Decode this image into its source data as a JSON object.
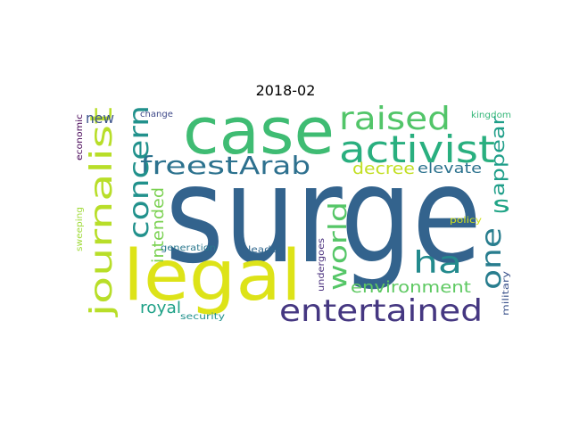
{
  "title": "2018-02",
  "words": [
    {
      "text": "surge",
      "color": "#33638d"
    },
    {
      "text": "case",
      "color": "#3fbc73"
    },
    {
      "text": "legal",
      "color": "#dde318"
    },
    {
      "text": "activist",
      "color": "#29af7f"
    },
    {
      "text": "raised",
      "color": "#52c569"
    },
    {
      "text": "Arab",
      "color": "#2d708e"
    },
    {
      "text": "freest",
      "color": "#2c728e"
    },
    {
      "text": "entertained",
      "color": "#453781"
    },
    {
      "text": "journalist",
      "color": "#b8de29"
    },
    {
      "text": "concern",
      "color": "#21918c"
    },
    {
      "text": "world",
      "color": "#55c667"
    },
    {
      "text": "one",
      "color": "#287d8e"
    },
    {
      "text": "ha",
      "color": "#238a8d"
    },
    {
      "text": "s",
      "color": "#20a486"
    },
    {
      "text": "appear",
      "color": "#1f9e89"
    },
    {
      "text": "decree",
      "color": "#c2df23"
    },
    {
      "text": "elevate",
      "color": "#2c728e"
    },
    {
      "text": "environment",
      "color": "#5ec962"
    },
    {
      "text": "intended",
      "color": "#7ad151"
    },
    {
      "text": "royal",
      "color": "#1fa187"
    },
    {
      "text": "new",
      "color": "#3b528b"
    },
    {
      "text": "change",
      "color": "#3e4989"
    },
    {
      "text": "kingdom",
      "color": "#35b779"
    },
    {
      "text": "economic",
      "color": "#440154"
    },
    {
      "text": "sweeping",
      "color": "#a0da39"
    },
    {
      "text": "policy",
      "color": "#d0e11c"
    },
    {
      "text": "generation",
      "color": "#2a788e"
    },
    {
      "text": "leader",
      "color": "#31688e"
    },
    {
      "text": "security",
      "color": "#21918c"
    },
    {
      "text": "undergoes",
      "color": "#472d7b"
    },
    {
      "text": "military",
      "color": "#3b528b"
    }
  ]
}
